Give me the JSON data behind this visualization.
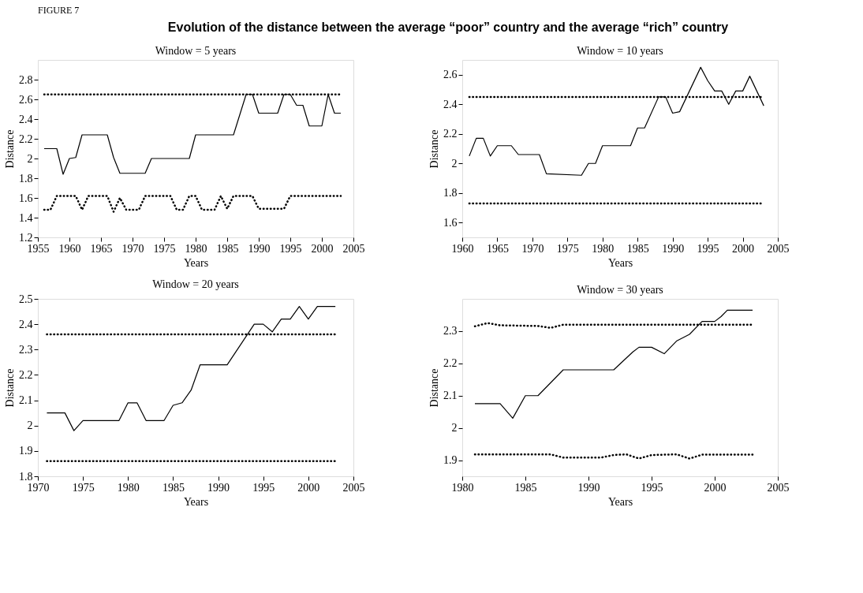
{
  "chart_data": [
    {
      "type": "line",
      "title": "Evolution of the distance between the average “poor” country and the average “rich” country",
      "annotations": [
        "FIGURE 7"
      ],
      "subtitle": "Window = 5 years",
      "xlabel": "Years",
      "ylabel": "Distance",
      "xlim": [
        1955,
        2005
      ],
      "xticks": [
        1955,
        1960,
        1965,
        1970,
        1975,
        1980,
        1985,
        1990,
        1995,
        2000,
        2005
      ],
      "ylim": [
        1.2,
        3.0
      ],
      "yticks": [
        1.2,
        1.4,
        1.6,
        1.8,
        2,
        2.2,
        2.4,
        2.6,
        2.8
      ],
      "series": [
        {
          "color": "#000000",
          "line_style": "solid",
          "x": [
            1956,
            1958,
            1959,
            1960,
            1961,
            1962,
            1966,
            1967,
            1968,
            1972,
            1973,
            1979,
            1980,
            1986,
            1988,
            1989,
            1990,
            1993,
            1994,
            1995,
            1996,
            1997,
            1998,
            2000,
            2001,
            2002,
            2003
          ],
          "values": [
            2.1,
            2.1,
            1.84,
            2.0,
            2.01,
            2.24,
            2.24,
            2.01,
            1.85,
            1.85,
            2.0,
            2.0,
            2.24,
            2.24,
            2.65,
            2.65,
            2.46,
            2.46,
            2.65,
            2.65,
            2.54,
            2.54,
            2.33,
            2.33,
            2.65,
            2.46,
            2.46
          ]
        },
        {
          "color": "#000000",
          "line_style": "dotted",
          "x": [
            1956,
            2003
          ],
          "values": [
            2.65,
            2.65
          ]
        },
        {
          "color": "#000000",
          "line_style": "dotted",
          "x": [
            1956,
            1957,
            1958,
            1961,
            1962,
            1963,
            1966,
            1967,
            1968,
            1969,
            1971,
            1972,
            1976,
            1977,
            1978,
            1979,
            1980,
            1981,
            1983,
            1984,
            1985,
            1986,
            1989,
            1990,
            1994,
            1995,
            2003
          ],
          "values": [
            1.48,
            1.48,
            1.62,
            1.62,
            1.48,
            1.62,
            1.62,
            1.46,
            1.6,
            1.48,
            1.48,
            1.62,
            1.62,
            1.48,
            1.48,
            1.62,
            1.62,
            1.48,
            1.48,
            1.62,
            1.49,
            1.62,
            1.62,
            1.49,
            1.49,
            1.62,
            1.62
          ]
        }
      ]
    },
    {
      "type": "line",
      "subtitle": "Window = 10 years",
      "xlabel": "Years",
      "ylabel": "Distance",
      "xlim": [
        1960,
        2005
      ],
      "xticks": [
        1960,
        1965,
        1970,
        1975,
        1980,
        1985,
        1990,
        1995,
        2000,
        2005
      ],
      "ylim": [
        1.5,
        2.7
      ],
      "yticks": [
        1.6,
        1.8,
        2,
        2.2,
        2.4,
        2.6
      ],
      "series": [
        {
          "color": "#000000",
          "line_style": "solid",
          "x": [
            1961,
            1962,
            1963,
            1964,
            1965,
            1967,
            1968,
            1971,
            1972,
            1977,
            1978,
            1979,
            1980,
            1984,
            1985,
            1986,
            1988,
            1989,
            1990,
            1991,
            1994,
            1995,
            1996,
            1997,
            1998,
            1999,
            2000,
            2001,
            2003
          ],
          "values": [
            2.05,
            2.17,
            2.17,
            2.05,
            2.12,
            2.12,
            2.06,
            2.06,
            1.93,
            1.92,
            2.0,
            2.0,
            2.12,
            2.12,
            2.24,
            2.24,
            2.45,
            2.45,
            2.34,
            2.35,
            2.65,
            2.56,
            2.49,
            2.49,
            2.4,
            2.49,
            2.49,
            2.59,
            2.39
          ]
        },
        {
          "color": "#000000",
          "line_style": "dotted",
          "x": [
            1961,
            2003
          ],
          "values": [
            2.45,
            2.45
          ]
        },
        {
          "color": "#000000",
          "line_style": "dotted",
          "x": [
            1961,
            2003
          ],
          "values": [
            1.73,
            1.73
          ]
        }
      ]
    },
    {
      "type": "line",
      "subtitle": "Window = 20 years",
      "xlabel": "Years",
      "ylabel": "Distance",
      "xlim": [
        1970,
        2005
      ],
      "xticks": [
        1970,
        1975,
        1980,
        1985,
        1990,
        1995,
        2000,
        2005
      ],
      "ylim": [
        1.8,
        2.5
      ],
      "yticks": [
        1.8,
        1.9,
        2,
        2.1,
        2.2,
        2.3,
        2.4,
        2.5
      ],
      "series": [
        {
          "color": "#000000",
          "line_style": "solid",
          "x": [
            1971,
            1973,
            1974,
            1975,
            1979,
            1980,
            1981,
            1982,
            1984,
            1985,
            1986,
            1987,
            1988,
            1991,
            1994,
            1995,
            1996,
            1997,
            1998,
            1999,
            2000,
            2001,
            2003
          ],
          "values": [
            2.05,
            2.05,
            1.98,
            2.02,
            2.02,
            2.09,
            2.09,
            2.02,
            2.02,
            2.08,
            2.09,
            2.14,
            2.24,
            2.24,
            2.4,
            2.4,
            2.37,
            2.42,
            2.42,
            2.47,
            2.42,
            2.47,
            2.47
          ]
        },
        {
          "color": "#000000",
          "line_style": "dotted",
          "x": [
            1971,
            2003
          ],
          "values": [
            2.36,
            2.36
          ]
        },
        {
          "color": "#000000",
          "line_style": "dotted",
          "x": [
            1971,
            2003
          ],
          "values": [
            1.86,
            1.86
          ]
        }
      ]
    },
    {
      "type": "line",
      "subtitle": "Window = 30 years",
      "xlabel": "Years",
      "ylabel": "Distance",
      "xlim": [
        1980,
        2005
      ],
      "xticks": [
        1980,
        1985,
        1990,
        1995,
        2000,
        2005
      ],
      "ylim": [
        1.85,
        2.4
      ],
      "yticks": [
        1.9,
        2,
        2.1,
        2.2,
        2.3
      ],
      "series": [
        {
          "color": "#000000",
          "line_style": "solid",
          "x": [
            1981,
            1983,
            1984,
            1985,
            1986,
            1988,
            1992,
            1993.5,
            1994,
            1995,
            1996,
            1997,
            1998,
            1999,
            2000,
            2000.5,
            2001,
            2003
          ],
          "values": [
            2.075,
            2.075,
            2.03,
            2.1,
            2.1,
            2.18,
            2.18,
            2.235,
            2.25,
            2.25,
            2.23,
            2.27,
            2.29,
            2.33,
            2.33,
            2.345,
            2.365,
            2.365
          ]
        },
        {
          "color": "#000000",
          "line_style": "dotted",
          "x": [
            1981,
            1982,
            1983,
            1986,
            1987,
            1988,
            2003
          ],
          "values": [
            2.315,
            2.325,
            2.318,
            2.316,
            2.31,
            2.32,
            2.32
          ]
        },
        {
          "color": "#000000",
          "line_style": "dotted",
          "x": [
            1981,
            1987,
            1988,
            1991,
            1992,
            1993,
            1994,
            1995,
            1997,
            1998,
            1999,
            2003
          ],
          "values": [
            1.918,
            1.918,
            1.908,
            1.908,
            1.916,
            1.918,
            1.905,
            1.916,
            1.918,
            1.905,
            1.917,
            1.917
          ]
        }
      ]
    }
  ]
}
